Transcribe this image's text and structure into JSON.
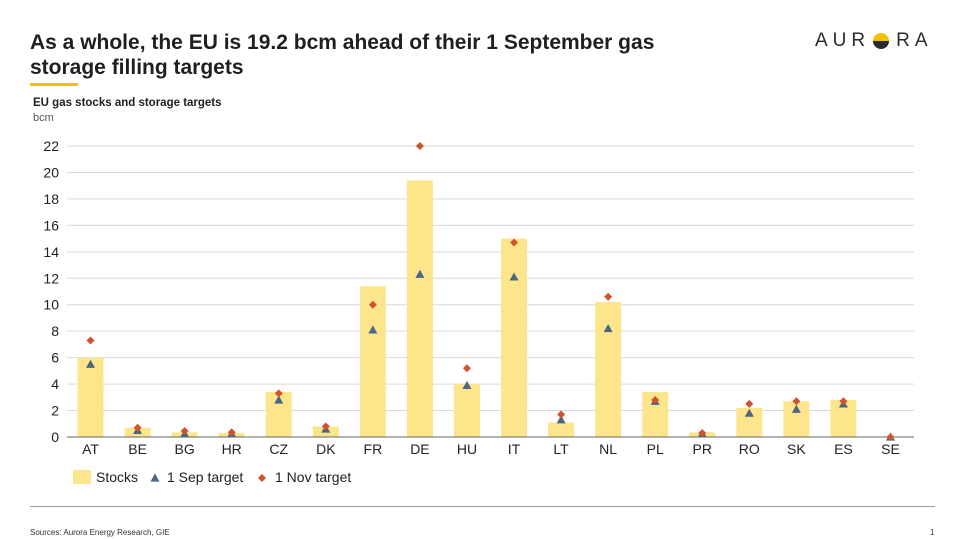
{
  "header": {
    "title": "As a whole, the EU is 19.2 bcm ahead of their 1 September gas storage filling targets",
    "logo_text_left": "AUR",
    "logo_text_right": "RA"
  },
  "footer": {
    "source": "Sources: Aurora Energy Research, GIE",
    "page": "1"
  },
  "colors": {
    "stocks": "#fde58c",
    "sep_target": "#4a6683",
    "nov_target": "#d1522e",
    "accent": "#f2c200"
  },
  "chart_data": {
    "type": "bar",
    "title": "EU gas stocks and storage targets",
    "ylabel": "bcm",
    "ylim": [
      0,
      22
    ],
    "yticks": [
      0,
      2,
      4,
      6,
      8,
      10,
      12,
      14,
      16,
      18,
      20,
      22
    ],
    "grid": true,
    "legend_position": "bottom-left",
    "categories": [
      "AT",
      "BE",
      "BG",
      "HR",
      "CZ",
      "DK",
      "FR",
      "DE",
      "HU",
      "IT",
      "LT",
      "NL",
      "PL",
      "PR",
      "RO",
      "SK",
      "ES",
      "SE"
    ],
    "series": [
      {
        "name": "Stocks",
        "kind": "bar",
        "values": [
          6.0,
          0.7,
          0.35,
          0.3,
          3.4,
          0.8,
          11.4,
          19.4,
          4.0,
          15.0,
          1.1,
          10.2,
          3.4,
          0.35,
          2.2,
          2.7,
          2.8,
          0.0
        ]
      },
      {
        "name": "1 Sep target",
        "kind": "triangle",
        "values": [
          5.5,
          0.5,
          0.25,
          0.25,
          2.8,
          0.6,
          8.1,
          12.3,
          3.9,
          12.1,
          1.3,
          8.2,
          2.7,
          0.25,
          1.8,
          2.1,
          2.5,
          0.0
        ]
      },
      {
        "name": "1 Nov target",
        "kind": "diamond",
        "values": [
          7.3,
          0.7,
          0.45,
          0.35,
          3.3,
          0.8,
          10.0,
          22.0,
          5.2,
          14.7,
          1.7,
          10.6,
          2.8,
          0.3,
          2.5,
          2.7,
          2.7,
          0.0
        ]
      }
    ]
  }
}
